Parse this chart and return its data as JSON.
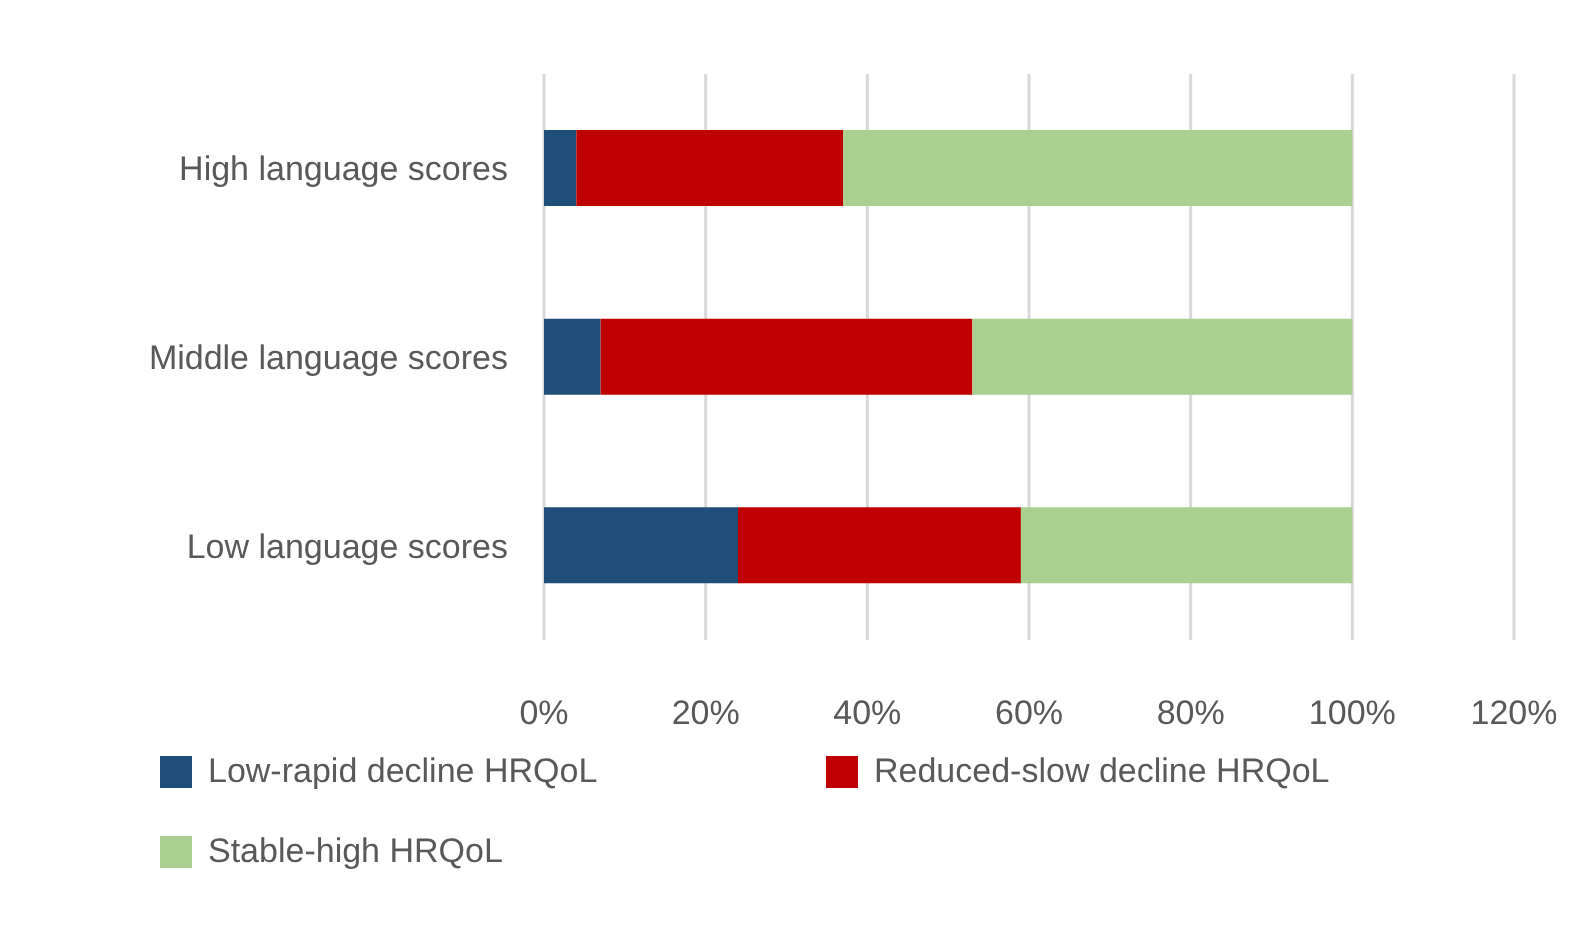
{
  "chart_data": {
    "type": "bar",
    "orientation": "horizontal",
    "stacked": true,
    "categories": [
      "High language scores",
      "Middle language scores",
      "Low language scores"
    ],
    "series": [
      {
        "name": "Low-rapid decline HRQoL",
        "color": "#1f4e79",
        "values": [
          4,
          7,
          24
        ]
      },
      {
        "name": "Reduced-slow decline HRQoL",
        "color": "#c00000",
        "values": [
          33,
          46,
          35
        ]
      },
      {
        "name": "Stable-high HRQoL",
        "color": "#a9d08e",
        "values": [
          63,
          47,
          41
        ]
      }
    ],
    "xlim": [
      0,
      120
    ],
    "xticks": [
      {
        "value": 0,
        "label": "0%"
      },
      {
        "value": 20,
        "label": "20%"
      },
      {
        "value": 40,
        "label": "40%"
      },
      {
        "value": 60,
        "label": "60%"
      },
      {
        "value": 80,
        "label": "80%"
      },
      {
        "value": 100,
        "label": "100%"
      },
      {
        "value": 120,
        "label": "120%"
      }
    ],
    "grid": "x",
    "legend": "bottom"
  }
}
